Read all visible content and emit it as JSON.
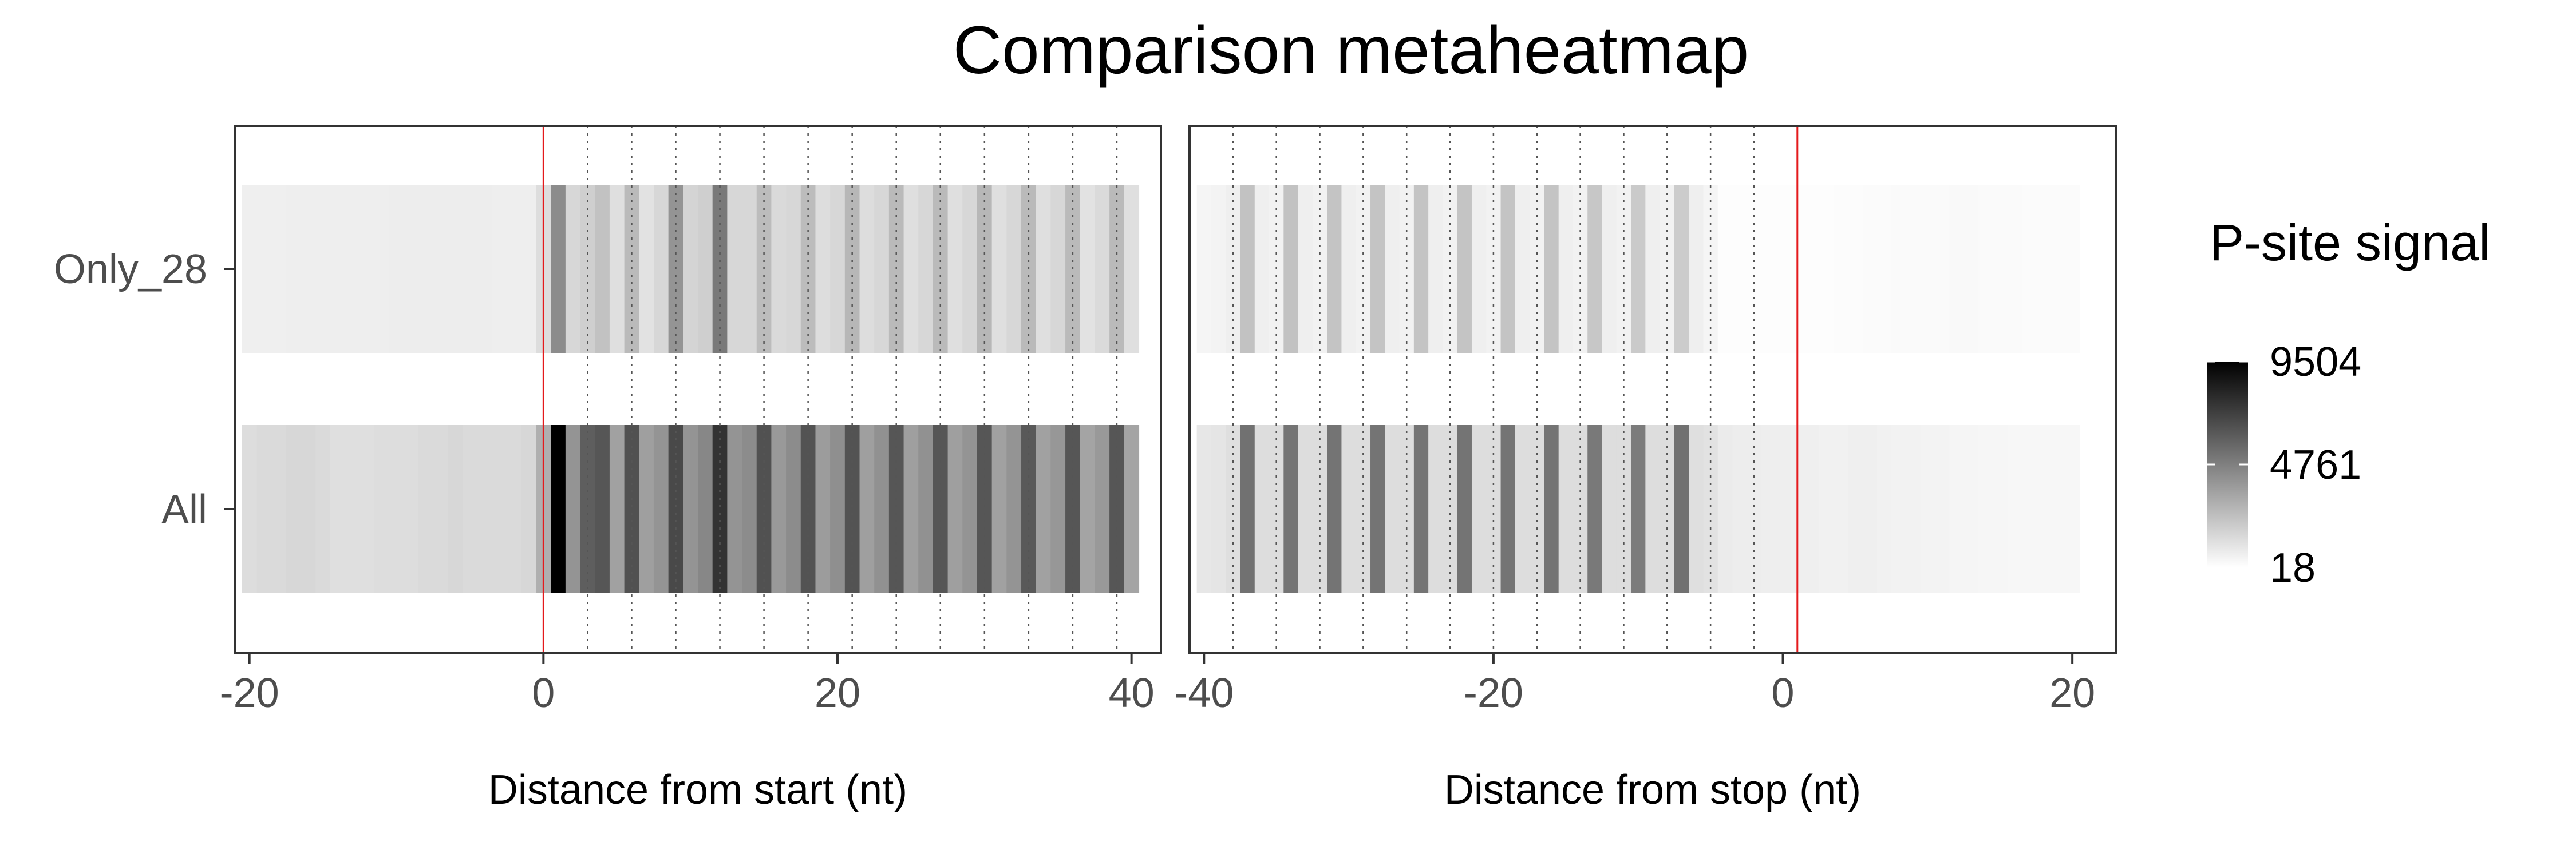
{
  "chart_data": {
    "type": "heatmap",
    "title": "Comparison metaheatmap",
    "rows": [
      "Only_28",
      "All"
    ],
    "legend": {
      "title": "P-site signal",
      "min": 18,
      "mid": 4761,
      "max": 9504,
      "labels": [
        "9504",
        "4761",
        "18"
      ],
      "color_low": "#ffffff",
      "color_high": "#000000"
    },
    "panels": [
      {
        "xlabel": "Distance from start (nt)",
        "xlim": [
          -21,
          42
        ],
        "xticks": [
          -20,
          0,
          20,
          40
        ],
        "xtick_labels": [
          "-20",
          "0",
          "20",
          "40"
        ],
        "reference_line": 0,
        "frame_lines": [
          3,
          6,
          9,
          12,
          15,
          18,
          21,
          24,
          27,
          30,
          33,
          36,
          39
        ],
        "x_range": [
          -20,
          40
        ],
        "rows": [
          {
            "name": "Only_28",
            "values": [
              600,
              600,
              600,
              650,
              650,
              650,
              650,
              650,
              650,
              650,
              700,
              700,
              700,
              700,
              700,
              700,
              700,
              650,
              650,
              650,
              1300,
              4300,
              1500,
              1800,
              2300,
              1200,
              2600,
              1100,
              1500,
              4000,
              1600,
              1800,
              5000,
              1500,
              1500,
              2500,
              1400,
              1500,
              2500,
              1300,
              1500,
              2700,
              1300,
              1500,
              2600,
              1200,
              1500,
              2600,
              1200,
              1500,
              2700,
              1200,
              1500,
              2600,
              1200,
              1500,
              2600,
              1100,
              1400,
              2600,
              1200
            ]
          },
          {
            "name": "All",
            "values": [
              1300,
              1400,
              1400,
              1500,
              1500,
              1400,
              1200,
              1200,
              1200,
              1300,
              1300,
              1300,
              1400,
              1400,
              1500,
              1400,
              1400,
              1400,
              1400,
              1500,
              3000,
              9504,
              4000,
              6000,
              6300,
              3500,
              6500,
              3600,
              4000,
              6800,
              4000,
              4500,
              7600,
              4000,
              4300,
              6500,
              3800,
              4300,
              6400,
              3700,
              4200,
              6400,
              3600,
              4100,
              6300,
              3600,
              4100,
              6300,
              3600,
              4000,
              6300,
              3500,
              4000,
              6200,
              3500,
              3900,
              6300,
              3400,
              3800,
              6300,
              3400
            ]
          }
        ]
      },
      {
        "xlabel": "Distance from stop (nt)",
        "xlim": [
          -41,
          23
        ],
        "xticks": [
          -40,
          -20,
          0,
          20
        ],
        "xtick_labels": [
          "-40",
          "-20",
          "0",
          "20"
        ],
        "reference_line": 1,
        "frame_lines": [
          -38,
          -35,
          -32,
          -29,
          -26,
          -23,
          -20,
          -17,
          -14,
          -11,
          -8,
          -5,
          -2
        ],
        "x_range": [
          -40,
          20
        ],
        "rows": [
          {
            "name": "Only_28",
            "values": [
              400,
              450,
              600,
              2300,
              600,
              500,
              2300,
              600,
              500,
              2200,
              600,
              500,
              2200,
              600,
              500,
              2200,
              600,
              500,
              2200,
              600,
              500,
              2200,
              600,
              500,
              2200,
              600,
              500,
              2100,
              600,
              500,
              2000,
              600,
              500,
              1900,
              600,
              400,
              100,
              100,
              100,
              100,
              100,
              100,
              100,
              100,
              120,
              120,
              150,
              150,
              200,
              200,
              220,
              220,
              250,
              250,
              200,
              200,
              200,
              180,
              180,
              180,
              180
            ]
          },
          {
            "name": "All",
            "values": [
              900,
              1000,
              1200,
              5300,
              1300,
              1300,
              5200,
              1300,
              1300,
              5200,
              1300,
              1300,
              5200,
              1300,
              1300,
              5200,
              1300,
              1300,
              5200,
              1300,
              1300,
              5200,
              1300,
              1300,
              5200,
              1300,
              1300,
              5000,
              1300,
              1300,
              4900,
              1300,
              1300,
              5300,
              1200,
              1100,
              750,
              700,
              700,
              650,
              650,
              600,
              600,
              550,
              550,
              600,
              600,
              550,
              500,
              500,
              450,
              450,
              400,
              400,
              350,
              350,
              300,
              300,
              300,
              300,
              300
            ]
          }
        ]
      }
    ]
  }
}
